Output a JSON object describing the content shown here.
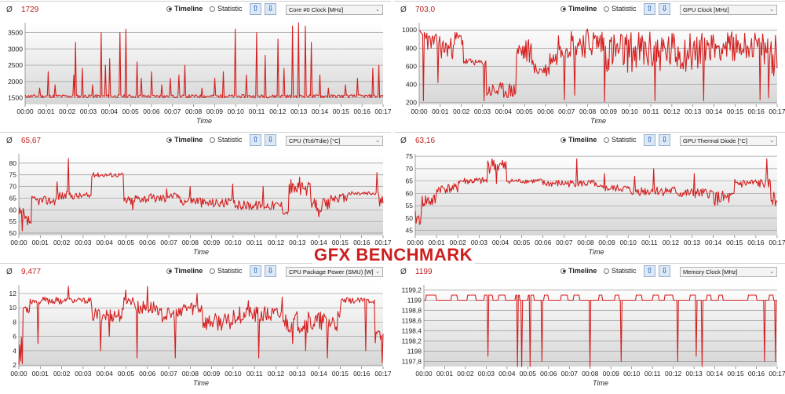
{
  "overlay_title": "GFX BENCHMARK",
  "common": {
    "avg_symbol": "Ø",
    "timeline_label": "Timeline",
    "statistic_label": "Statistic",
    "up_arrow": "⇧",
    "down_arrow": "⇩",
    "x_axis_label": "Time",
    "x_ticks": [
      "00:00",
      "00:01",
      "00:02",
      "00:03",
      "00:04",
      "00:05",
      "00:06",
      "00:07",
      "00:08",
      "00:09",
      "00:10",
      "00:11",
      "00:12",
      "00:13",
      "00:14",
      "00:15",
      "00:16",
      "00:17"
    ],
    "line_color": "#d42020"
  },
  "panels": [
    {
      "avg": "1729",
      "sensor": "Core #0 Clock [MHz]",
      "chart_data": {
        "type": "line",
        "xlabel": "Time",
        "ylim": [
          1300,
          3800
        ],
        "yticks": [
          1500,
          2000,
          2500,
          3000,
          3500
        ],
        "ytick_labels": [
          "1500",
          "2000",
          "2500",
          "3000",
          "3500"
        ],
        "baseline": [
          1500,
          1600
        ],
        "seed": 11,
        "spikes": [
          [
            0.7,
            1800
          ],
          [
            1.1,
            2300
          ],
          [
            1.4,
            1900
          ],
          [
            2.3,
            2200
          ],
          [
            2.4,
            3200
          ],
          [
            2.7,
            2400
          ],
          [
            3.2,
            1900
          ],
          [
            3.6,
            3500
          ],
          [
            3.8,
            2500
          ],
          [
            4.0,
            2700
          ],
          [
            4.5,
            3500
          ],
          [
            4.8,
            3600
          ],
          [
            5.3,
            2600
          ],
          [
            5.5,
            2100
          ],
          [
            6.0,
            2300
          ],
          [
            6.5,
            1900
          ],
          [
            6.9,
            2100
          ],
          [
            7.3,
            2200
          ],
          [
            7.6,
            2500
          ],
          [
            8.4,
            1800
          ],
          [
            9.0,
            2100
          ],
          [
            9.4,
            2300
          ],
          [
            10.0,
            3600
          ],
          [
            10.5,
            2200
          ],
          [
            11.0,
            3500
          ],
          [
            11.4,
            2800
          ],
          [
            12.0,
            3300
          ],
          [
            12.3,
            2400
          ],
          [
            12.7,
            3700
          ],
          [
            13.0,
            3800
          ],
          [
            13.3,
            3700
          ],
          [
            13.6,
            3200
          ],
          [
            14.0,
            2200
          ],
          [
            14.4,
            1800
          ],
          [
            15.2,
            1900
          ],
          [
            15.8,
            2100
          ],
          [
            16.5,
            2400
          ],
          [
            16.8,
            2500
          ]
        ]
      }
    },
    {
      "avg": "703,0",
      "sensor": "GPU Clock [MHz]",
      "chart_data": {
        "type": "line",
        "xlabel": "Time",
        "ylim": [
          180,
          1080
        ],
        "yticks": [
          200,
          400,
          600,
          800,
          1000
        ],
        "ytick_labels": [
          "200",
          "400",
          "600",
          "800",
          "1000"
        ],
        "segments": [
          [
            0,
            0.4,
            950,
            60
          ],
          [
            0.4,
            1.0,
            870,
            90
          ],
          [
            1.0,
            1.6,
            800,
            120
          ],
          [
            1.6,
            2.1,
            900,
            90
          ],
          [
            2.1,
            2.6,
            650,
            40
          ],
          [
            2.6,
            3.2,
            640,
            30
          ],
          [
            3.2,
            4.6,
            330,
            90
          ],
          [
            4.6,
            5.4,
            760,
            150
          ],
          [
            5.4,
            6.2,
            560,
            80
          ],
          [
            6.2,
            6.6,
            690,
            90
          ],
          [
            6.6,
            8.8,
            860,
            170
          ],
          [
            8.8,
            13.4,
            760,
            230
          ],
          [
            13.4,
            15.4,
            820,
            160
          ],
          [
            15.4,
            16.3,
            830,
            150
          ],
          [
            16.3,
            17.0,
            750,
            260
          ]
        ],
        "seed": 23,
        "dips": [
          [
            0.2,
            220
          ],
          [
            0.9,
            420
          ],
          [
            3.1,
            220
          ],
          [
            6.9,
            230
          ],
          [
            7.4,
            280
          ],
          [
            8.8,
            210
          ],
          [
            11.2,
            220
          ],
          [
            13.5,
            220
          ],
          [
            16.2,
            230
          ],
          [
            16.6,
            250
          ]
        ]
      }
    },
    {
      "avg": "65,67",
      "sensor": "CPU (Tctl/Tdie) [°C]",
      "chart_data": {
        "type": "line",
        "xlabel": "Time",
        "ylim": [
          49,
          84
        ],
        "yticks": [
          50,
          55,
          60,
          65,
          70,
          75,
          80
        ],
        "ytick_labels": [
          "50",
          "55",
          "60",
          "65",
          "70",
          "75",
          "80"
        ],
        "segments": [
          [
            0,
            0.25,
            57,
            4
          ],
          [
            0.25,
            0.6,
            55,
            3
          ],
          [
            0.6,
            1.8,
            64,
            2
          ],
          [
            1.8,
            2.3,
            66,
            2
          ],
          [
            2.3,
            3.4,
            66,
            1.5
          ],
          [
            3.4,
            4.9,
            75,
            1
          ],
          [
            4.9,
            5.4,
            64,
            2
          ],
          [
            5.4,
            6.9,
            65,
            2
          ],
          [
            6.9,
            7.5,
            66,
            1.5
          ],
          [
            7.5,
            8.5,
            64,
            2
          ],
          [
            8.5,
            10.0,
            63,
            2
          ],
          [
            10.0,
            12.3,
            62,
            2
          ],
          [
            12.3,
            12.6,
            59,
            1
          ],
          [
            12.6,
            13.6,
            69,
            3
          ],
          [
            13.6,
            14.5,
            62,
            3
          ],
          [
            14.5,
            15.3,
            65,
            2
          ],
          [
            15.3,
            16.8,
            67,
            1
          ],
          [
            16.8,
            17.0,
            63,
            3
          ]
        ],
        "seed": 37,
        "spikes": [
          [
            0.15,
            51
          ],
          [
            2.3,
            82
          ],
          [
            1.8,
            72
          ],
          [
            3.6,
            75
          ],
          [
            5.3,
            60
          ],
          [
            6.9,
            69
          ],
          [
            8.0,
            70
          ],
          [
            10.0,
            71
          ],
          [
            11.4,
            70
          ],
          [
            12.7,
            73
          ],
          [
            13.1,
            74
          ],
          [
            14.0,
            57
          ],
          [
            16.7,
            76
          ]
        ]
      }
    },
    {
      "avg": "63,16",
      "sensor": "GPU Thermal Diode [°C]",
      "chart_data": {
        "type": "line",
        "xlabel": "Time",
        "ylim": [
          43,
          76
        ],
        "yticks": [
          45,
          50,
          55,
          60,
          65,
          70,
          75
        ],
        "ytick_labels": [
          "45",
          "50",
          "55",
          "60",
          "65",
          "70",
          "75"
        ],
        "segments": [
          [
            0,
            0.3,
            50,
            3
          ],
          [
            0.3,
            1.0,
            57,
            3
          ],
          [
            1.0,
            2.0,
            62,
            2
          ],
          [
            2.0,
            3.4,
            65,
            1.5
          ],
          [
            3.4,
            4.3,
            71,
            3
          ],
          [
            4.3,
            6.0,
            65,
            1
          ],
          [
            6.0,
            8.5,
            64,
            1.5
          ],
          [
            8.5,
            10.0,
            62,
            1.5
          ],
          [
            10.0,
            12.3,
            61,
            2
          ],
          [
            12.3,
            14.0,
            60,
            2
          ],
          [
            14.0,
            15.0,
            58,
            3
          ],
          [
            15.0,
            16.7,
            64,
            2
          ],
          [
            16.7,
            17.0,
            58,
            3
          ]
        ],
        "seed": 41,
        "spikes": [
          [
            3.6,
            74
          ],
          [
            3.8,
            64
          ],
          [
            4.2,
            70
          ],
          [
            7.6,
            74
          ],
          [
            8.9,
            68
          ],
          [
            10.3,
            67
          ],
          [
            11.2,
            70
          ],
          [
            13.1,
            68
          ],
          [
            16.5,
            74
          ],
          [
            16.9,
            55
          ]
        ]
      }
    },
    {
      "avg": "9,477",
      "sensor": "CPU Package Power (SMU) [W]",
      "chart_data": {
        "type": "line",
        "xlabel": "Time",
        "ylim": [
          1.8,
          13.2
        ],
        "yticks": [
          2,
          4,
          6,
          8,
          10,
          12
        ],
        "ytick_labels": [
          "2",
          "4",
          "6",
          "8",
          "10",
          "12"
        ],
        "segments": [
          [
            0,
            0.2,
            4,
            2
          ],
          [
            0.2,
            0.5,
            10,
            0.8
          ],
          [
            0.5,
            2.0,
            11,
            0.5
          ],
          [
            2.0,
            3.4,
            11,
            0.4
          ],
          [
            3.4,
            4.9,
            9,
            1
          ],
          [
            4.9,
            5.4,
            11,
            0.6
          ],
          [
            5.4,
            6.5,
            10,
            1
          ],
          [
            6.5,
            7.6,
            9,
            1
          ],
          [
            7.6,
            8.6,
            10,
            1
          ],
          [
            8.6,
            10.0,
            8,
            1.2
          ],
          [
            10.0,
            12.4,
            9,
            1.2
          ],
          [
            12.4,
            13.6,
            8,
            1.5
          ],
          [
            13.6,
            15.0,
            8,
            1.5
          ],
          [
            15.0,
            16.6,
            11,
            0.4
          ],
          [
            16.6,
            17.0,
            6,
            1
          ]
        ],
        "seed": 53,
        "spikes": [
          [
            0.15,
            2.2
          ],
          [
            0.9,
            5
          ],
          [
            2.3,
            13
          ],
          [
            3.8,
            4
          ],
          [
            4.2,
            6
          ],
          [
            5.0,
            12.5
          ],
          [
            5.5,
            3
          ],
          [
            6.0,
            13
          ],
          [
            7.3,
            3
          ],
          [
            8.3,
            12
          ],
          [
            9.0,
            8
          ],
          [
            10.7,
            11
          ],
          [
            11.2,
            3
          ],
          [
            12.3,
            11.5
          ],
          [
            12.8,
            5
          ],
          [
            13.4,
            4
          ],
          [
            14.4,
            3
          ],
          [
            15.0,
            10
          ],
          [
            16.2,
            4
          ],
          [
            16.95,
            2.3
          ]
        ]
      }
    },
    {
      "avg": "1199",
      "sensor": "Memory Clock [MHz]",
      "chart_data": {
        "type": "line",
        "xlabel": "Time",
        "ylim": [
          1197.7,
          1199.3
        ],
        "yticks": [
          1197.8,
          1198.0,
          1198.2,
          1198.4,
          1198.6,
          1198.8,
          1199.0,
          1199.2
        ],
        "ytick_labels": [
          "1197,8",
          "1198",
          "1198,2",
          "1198,4",
          "1198,6",
          "1198,8",
          "1199",
          "1199,2"
        ],
        "base": 1199.0,
        "ups": [
          [
            0.1,
            0.6
          ],
          [
            1.3,
            1.6
          ],
          [
            2.1,
            2.5
          ],
          [
            2.9,
            3.3
          ],
          [
            3.6,
            3.9
          ],
          [
            4.4,
            4.6
          ],
          [
            5.0,
            5.3
          ],
          [
            5.8,
            6.0
          ],
          [
            6.6,
            6.9
          ],
          [
            7.2,
            7.5
          ],
          [
            8.4,
            8.6
          ],
          [
            9.2,
            9.4
          ],
          [
            10.2,
            10.5
          ],
          [
            11.0,
            11.3
          ],
          [
            11.6,
            12.0
          ],
          [
            12.8,
            13.1
          ],
          [
            13.6,
            13.8
          ],
          [
            14.2,
            14.4
          ],
          [
            15.6,
            16.0
          ],
          [
            16.6,
            16.8
          ]
        ],
        "dips": [
          [
            3.1,
            1197.9
          ],
          [
            4.5,
            1197.7
          ],
          [
            4.7,
            1197.7
          ],
          [
            5.1,
            1197.7
          ],
          [
            5.7,
            1197.8
          ],
          [
            8.0,
            1197.7
          ],
          [
            9.5,
            1197.8
          ],
          [
            12.2,
            1197.8
          ],
          [
            13.1,
            1197.9
          ],
          [
            13.4,
            1197.7
          ],
          [
            16.4,
            1197.8
          ],
          [
            16.9,
            1197.8
          ]
        ]
      }
    }
  ]
}
